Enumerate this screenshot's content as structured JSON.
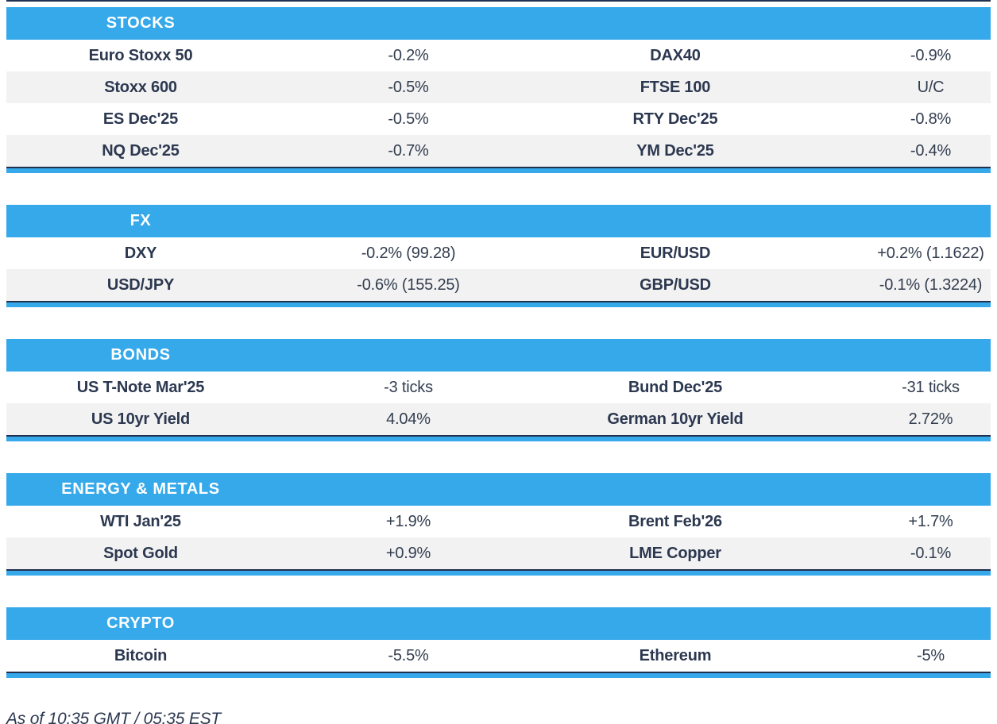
{
  "page": {
    "as_of": "As of 10:35 GMT / 05:35 EST"
  },
  "colors": {
    "accent_blue": "#35a9ea",
    "divider_navy": "#20304f",
    "row_alt_gray": "#f2f2f2",
    "text_dark": "#2c3850",
    "header_text": "#ffffff"
  },
  "sections": [
    {
      "title": "STOCKS",
      "rows": [
        [
          "Euro Stoxx 50",
          "-0.2%",
          "DAX40",
          "-0.9%"
        ],
        [
          "Stoxx 600",
          "-0.5%",
          "FTSE 100",
          "U/C"
        ],
        [
          "ES Dec'25",
          "-0.5%",
          "RTY Dec'25",
          "-0.8%"
        ],
        [
          "NQ Dec'25",
          "-0.7%",
          "YM Dec'25",
          "-0.4%"
        ]
      ]
    },
    {
      "title": "FX",
      "rows": [
        [
          "DXY",
          "-0.2% (99.28)",
          "EUR/USD",
          "+0.2% (1.1622)"
        ],
        [
          "USD/JPY",
          "-0.6% (155.25)",
          "GBP/USD",
          "-0.1% (1.3224)"
        ]
      ]
    },
    {
      "title": "BONDS",
      "rows": [
        [
          "US T-Note Mar'25",
          "-3 ticks",
          "Bund Dec'25",
          "-31 ticks"
        ],
        [
          "US 10yr Yield",
          "4.04%",
          "German 10yr Yield",
          "2.72%"
        ]
      ]
    },
    {
      "title": "ENERGY & METALS",
      "rows": [
        [
          "WTI Jan'25",
          "+1.9%",
          "Brent Feb'26",
          "+1.7%"
        ],
        [
          "Spot Gold",
          "+0.9%",
          "LME Copper",
          "-0.1%"
        ]
      ]
    },
    {
      "title": "CRYPTO",
      "rows": [
        [
          "Bitcoin",
          "-5.5%",
          "Ethereum",
          "-5%"
        ]
      ]
    }
  ]
}
